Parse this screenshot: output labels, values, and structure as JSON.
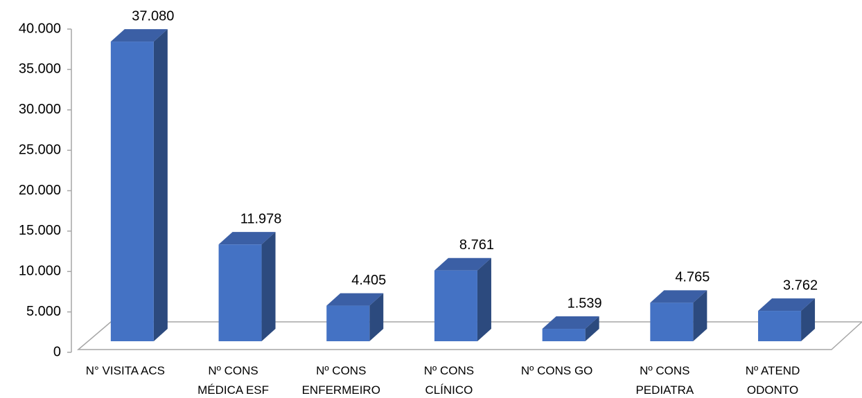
{
  "chart_data": {
    "type": "bar3d",
    "categories": [
      "N° VISITA ACS",
      "Nº CONS\nMÉDICA ESF",
      "Nº CONS\nENFERMEIRO",
      "Nº CONS\nCLÍNICO",
      "Nº CONS GO",
      "Nº CONS\nPEDIATRA",
      "Nº ATEND\nODONTO"
    ],
    "values": [
      37080,
      11978,
      4405,
      8761,
      1539,
      4765,
      3762
    ],
    "value_labels": [
      "37.080",
      "11.978",
      "4.405",
      "8.761",
      "1.539",
      "4.765",
      "3.762"
    ],
    "color": "#4472c4",
    "ylim": [
      0,
      40000
    ],
    "yticks": [
      0,
      {
        "value": 5000,
        "label": "5.000"
      },
      {
        "value": 10000,
        "label": "10.000"
      },
      {
        "value": 15000,
        "label": "15.000"
      },
      {
        "value": 20000,
        "label": "20.000"
      },
      {
        "value": 25000,
        "label": "25.000"
      },
      {
        "value": 30000,
        "label": "30.000"
      },
      {
        "value": 35000,
        "label": "35.000"
      },
      {
        "value": 40000,
        "label": "40.000"
      }
    ]
  }
}
